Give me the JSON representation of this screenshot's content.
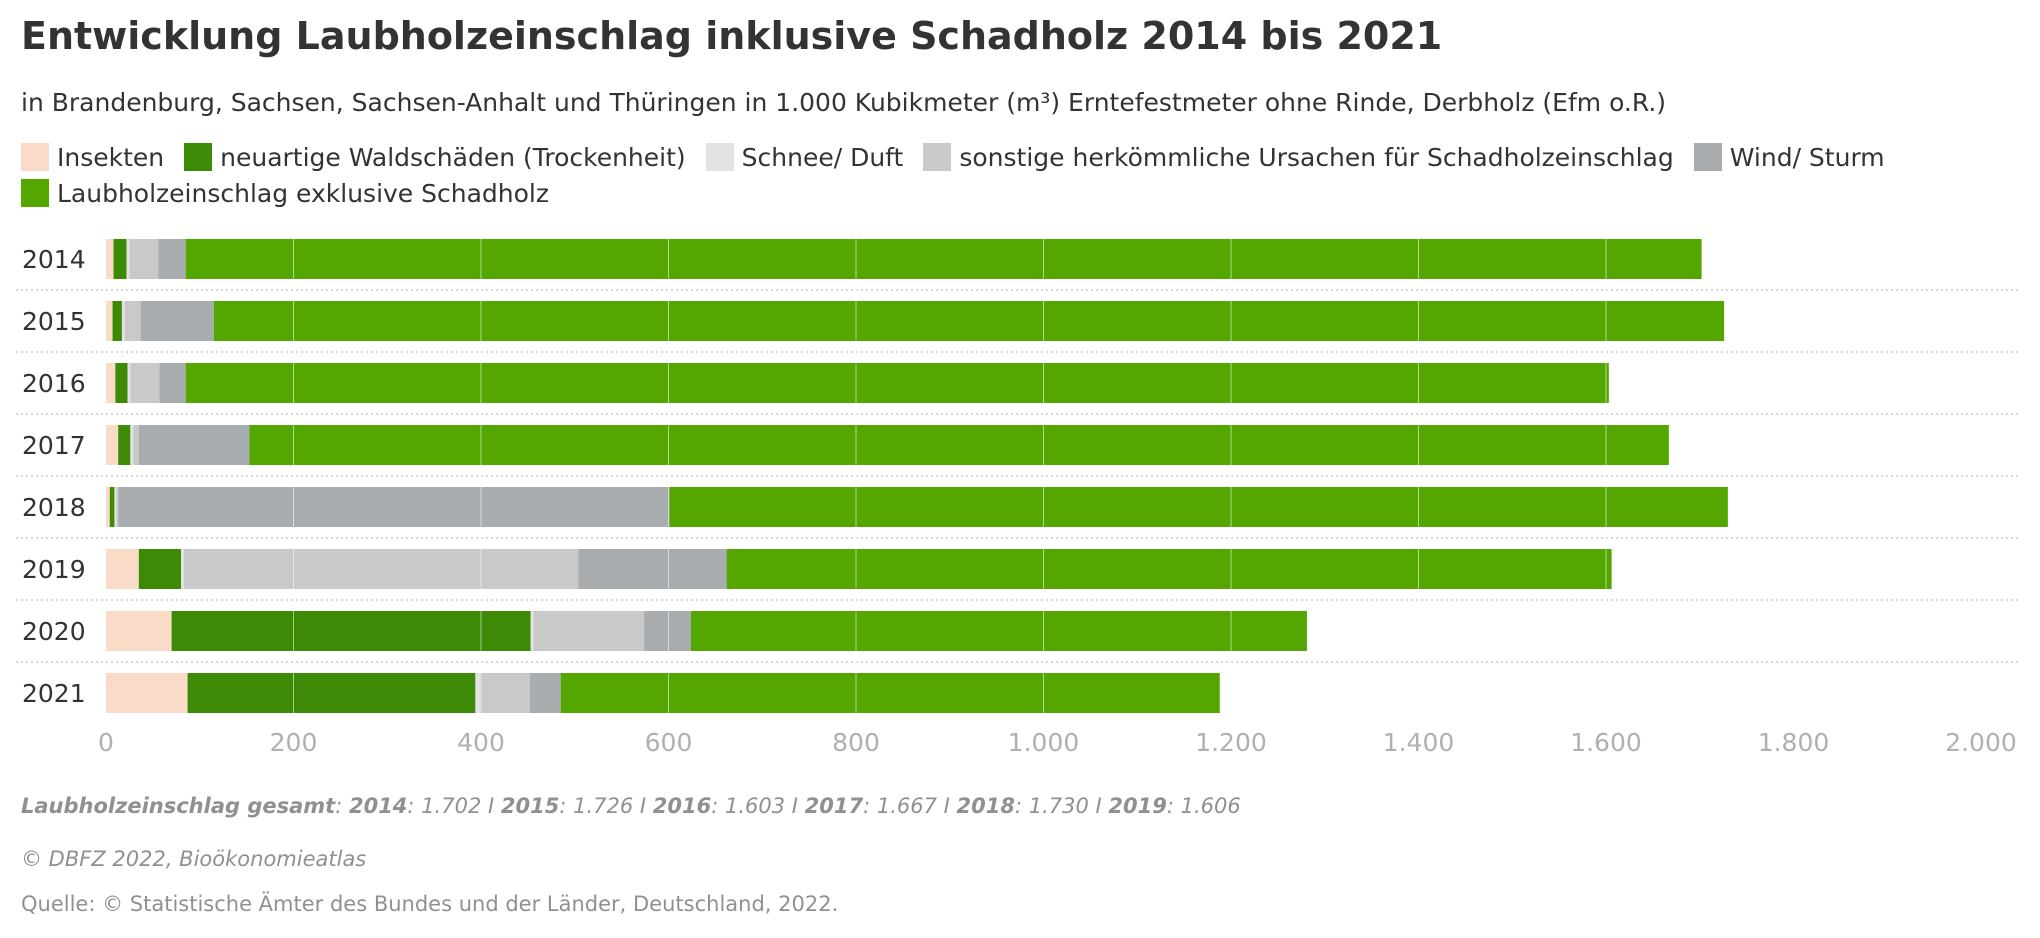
{
  "colors": {
    "insekten": "#fadbc8",
    "waldschaeden": "#3c8a06",
    "schnee": "#e3e3e3",
    "sonstige": "#c8c9c8",
    "wind": "#a9acaf",
    "laubholz": "#54a700",
    "axis_text": "#b0b0b0",
    "gridline": "#ffffff",
    "separator": "#cccccc"
  },
  "notes": {
    "label": "Laubholzeinschlag gesamt",
    "totals": [
      {
        "year": "2014",
        "value": "1.702"
      },
      {
        "year": "2015",
        "value": "1.726"
      },
      {
        "year": "2016",
        "value": "1.603"
      },
      {
        "year": "2017",
        "value": "1.667"
      },
      {
        "year": "2018",
        "value": "1.730"
      },
      {
        "year": "2019",
        "value": "1.606"
      }
    ],
    "separator": "I"
  },
  "credit": "© DBFZ 2022, Bioökonomieatlas",
  "source": "Quelle: © Statistische Ämter des Bundes und der Länder, Deutschland, 2022.",
  "chart_data": {
    "type": "bar",
    "orientation": "horizontal",
    "stacked": true,
    "title": "Entwicklung Laubholzeinschlag inklusive Schadholz 2014 bis 2021",
    "subtitle": "in Brandenburg, Sachsen, Sachsen-Anhalt und Thüringen in 1.000 Kubikmeter (m³) Erntefestmeter ohne Rinde, Derbholz (Efm o.R.)",
    "categories": [
      "2014",
      "2015",
      "2016",
      "2017",
      "2018",
      "2019",
      "2020",
      "2021"
    ],
    "series": [
      {
        "name": "Insekten",
        "color": "#fadbc8",
        "values": [
          8,
          7,
          10,
          13,
          4,
          35,
          70,
          87
        ]
      },
      {
        "name": "neuartige Waldschäden (Trockenheit)",
        "color": "#3c8a06",
        "values": [
          14,
          10,
          13,
          13,
          5,
          45,
          383,
          307
        ]
      },
      {
        "name": "Schnee/ Duft",
        "color": "#e3e3e3",
        "values": [
          3,
          3,
          3,
          3,
          2,
          3,
          3,
          5
        ]
      },
      {
        "name": "sonstige herkömmliche Ursachen für Schadholzeinschlag",
        "color": "#c8c9c8",
        "values": [
          31,
          17,
          31,
          6,
          2,
          421,
          118,
          53
        ]
      },
      {
        "name": "Wind/ Sturm",
        "color": "#a9acaf",
        "values": [
          29,
          78,
          28,
          118,
          588,
          158,
          50,
          33
        ]
      },
      {
        "name": "Laubholzeinschlag exklusive Schadholz",
        "color": "#54a700",
        "values": [
          1617,
          1611,
          1518,
          1514,
          1129,
          944,
          657,
          703
        ]
      }
    ],
    "xlim": [
      0,
      2000
    ],
    "xticks": [
      0,
      200,
      400,
      600,
      800,
      1000,
      1200,
      1400,
      1600,
      1800,
      2000
    ],
    "xtick_labels": [
      "0",
      "200",
      "400",
      "600",
      "800",
      "1.000",
      "1.200",
      "1.400",
      "1.600",
      "1.800",
      "2.000"
    ],
    "grid": true,
    "legend_position": "top"
  }
}
